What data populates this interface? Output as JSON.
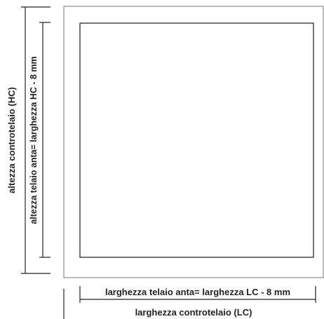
{
  "labels": {
    "outer_height": "altezza controtelaio (HC)",
    "inner_height": "altezza telaio anta= larghezza HC - 8 mm",
    "inner_width": "larghezza telaio anta= larghezza LC - 8 mm",
    "outer_width": "larghezza controtelaio (LC)"
  },
  "colors": {
    "frame_outer": "#8c8c8c",
    "frame_inner": "#1a1a1a",
    "dimension_lines": "#222222"
  }
}
